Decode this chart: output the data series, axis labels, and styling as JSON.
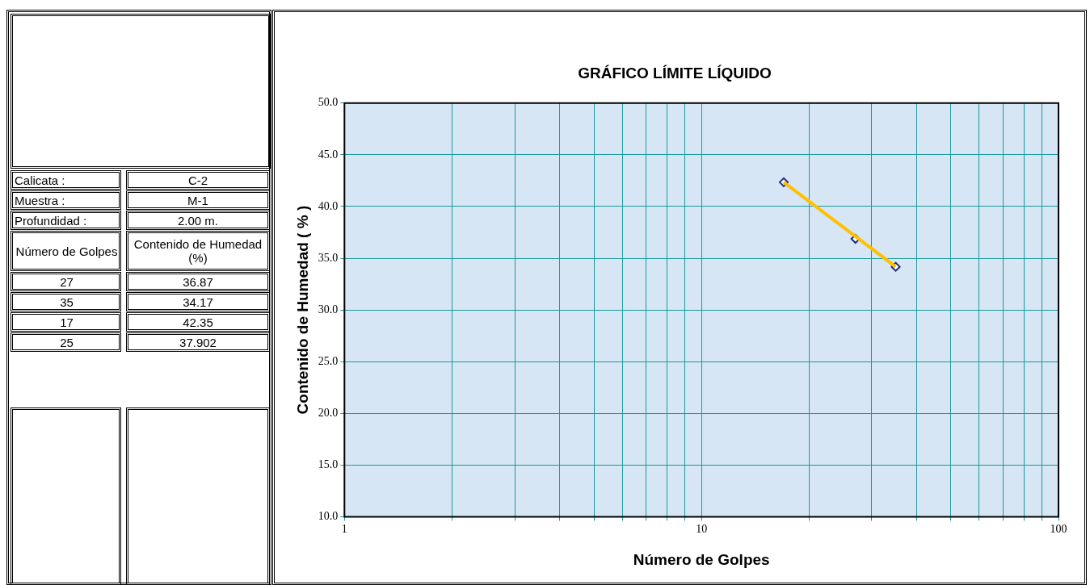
{
  "chart_data": {
    "type": "scatter",
    "title": "GRÁFICO LÍMITE LÍQUIDO",
    "xlabel": "Número de Golpes",
    "ylabel": "Contenido de Humedad ( % )",
    "log": "x",
    "grid": true,
    "legend": false,
    "xlim": [
      1,
      100
    ],
    "ylim": [
      10,
      50
    ],
    "xticks": [
      1,
      {
        "value": 2,
        "label": null
      },
      {
        "value": 3,
        "label": null
      },
      {
        "value": 4,
        "label": null
      },
      {
        "value": 5,
        "label": null
      },
      {
        "value": 6,
        "label": null
      },
      {
        "value": 7,
        "label": null
      },
      {
        "value": 8,
        "label": null
      },
      {
        "value": 9,
        "label": null
      },
      10,
      {
        "value": 20,
        "label": null
      },
      {
        "value": 30,
        "label": null
      },
      {
        "value": 40,
        "label": null
      },
      {
        "value": 50,
        "label": null
      },
      {
        "value": 60,
        "label": null
      },
      {
        "value": 70,
        "label": null
      },
      {
        "value": 80,
        "label": null
      },
      {
        "value": 90,
        "label": null
      },
      100
    ],
    "yticks": [
      {
        "value": 10,
        "label": "10.0"
      },
      {
        "value": 15,
        "label": "15.0"
      },
      {
        "value": 20,
        "label": "20.0"
      },
      {
        "value": 25,
        "label": "25.0"
      },
      {
        "value": 30,
        "label": "30.0"
      },
      {
        "value": 35,
        "label": "35.0"
      },
      {
        "value": 40,
        "label": "40.0"
      },
      {
        "value": 45,
        "label": "45.0"
      },
      {
        "value": 50,
        "label": "50.0"
      }
    ],
    "series": [
      {
        "type": "line",
        "marker": "none",
        "color": "#ffc000",
        "x": [
          17,
          35
        ],
        "values": [
          42.35,
          34.17
        ]
      },
      {
        "marker": "diamond",
        "color": "#1f2a7a",
        "x": [
          27,
          35,
          17
        ],
        "values": [
          36.87,
          34.17,
          42.35
        ]
      }
    ],
    "annotations": [
      "Calicata :",
      "C-2",
      "Muestra :",
      "M-1",
      "Profundidad :",
      "2.00 m.",
      "Número de Golpes",
      "Contenido de Humedad (%)",
      "27",
      "36.87",
      "35",
      "34.17",
      "17",
      "42.35",
      "25",
      "37.902"
    ]
  }
}
